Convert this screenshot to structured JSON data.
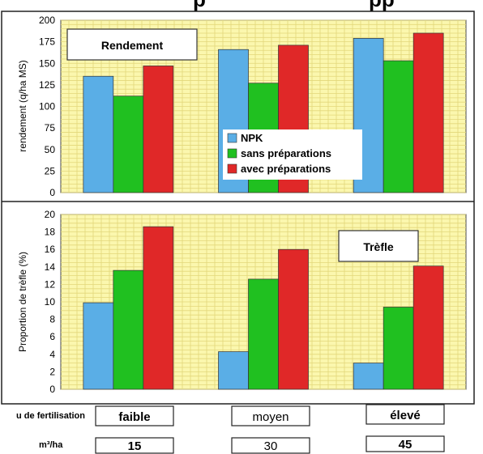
{
  "header_fragment": "p",
  "header_fragment_2": "pp",
  "colors": {
    "npk": "#5aaee6",
    "sans": "#20c020",
    "avec": "#e02828",
    "plot_bg": "#fbf7ae",
    "grid": "#e3d77a"
  },
  "chart_data": [
    {
      "type": "bar",
      "title": "Rendement",
      "ylabel": "rendement (q/ha MS)",
      "ylim": [
        0,
        200
      ],
      "yticks": [
        "0",
        "25",
        "50",
        "75",
        "100",
        "125",
        "150",
        "175",
        "200"
      ],
      "categories": [
        "faible",
        "moyen",
        "élevé"
      ],
      "series": [
        {
          "name": "NPK",
          "values": [
            135,
            166,
            179
          ]
        },
        {
          "name": "sans préparations",
          "values": [
            112,
            127,
            153
          ]
        },
        {
          "name": "avec préparations",
          "values": [
            147,
            171,
            185
          ]
        }
      ],
      "legend": "center-right"
    },
    {
      "type": "bar",
      "title": "Trèfle",
      "ylabel": "Proportion de trèfle (%)",
      "ylim": [
        0,
        20
      ],
      "yticks": [
        "0",
        "2",
        "4",
        "6",
        "8",
        "10",
        "12",
        "14",
        "16",
        "18",
        "20"
      ],
      "categories": [
        "faible",
        "moyen",
        "élevé"
      ],
      "series": [
        {
          "values": [
            9.9,
            4.3,
            3.0
          ]
        },
        {
          "values": [
            13.6,
            12.6,
            9.4
          ]
        },
        {
          "values": [
            18.6,
            16.0,
            14.1
          ]
        }
      ]
    }
  ],
  "rows": {
    "fertilisation": {
      "label": "u de fertilisation",
      "values": [
        "faible",
        "moyen",
        "élevé"
      ]
    },
    "volume": {
      "label": "m³/ha",
      "values": [
        "15",
        "30",
        "45"
      ]
    }
  }
}
